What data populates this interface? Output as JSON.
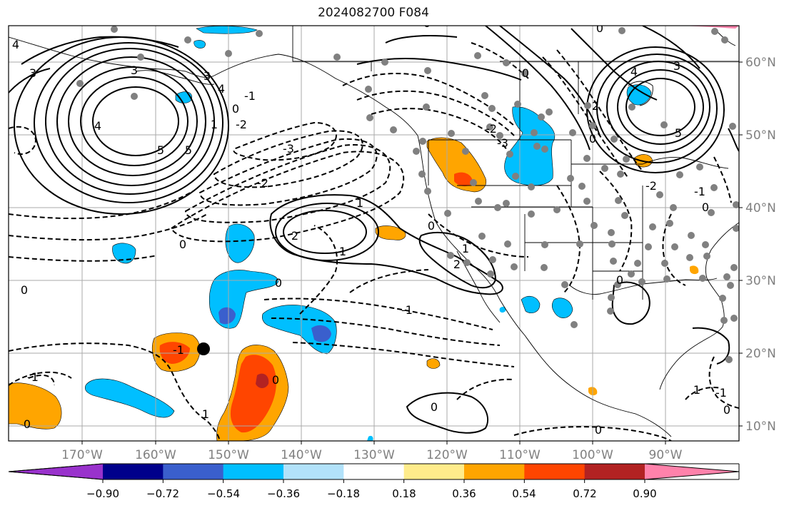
{
  "title": "2024082700 F084",
  "map": {
    "lon_labels": [
      "170°W",
      "160°W",
      "150°W",
      "140°W",
      "130°W",
      "120°W",
      "110°W",
      "100°W",
      "90°W"
    ],
    "lat_labels": [
      "60°N",
      "50°N",
      "40°N",
      "30°N",
      "20°N",
      "10°N"
    ],
    "contour_labels": [
      "4",
      "3",
      "3",
      "4",
      "5",
      "5",
      "3",
      "4",
      "0",
      "1",
      "-1",
      "-2",
      "-3",
      "-2",
      "1",
      "2",
      "1",
      "0",
      "2",
      "0",
      "-1",
      "0",
      "0",
      "0",
      "-1",
      "1",
      "0",
      "-1",
      "0",
      "0",
      "0",
      "1",
      "0",
      "-2",
      "-3",
      "2",
      "0",
      "3",
      "4",
      "5",
      "-2",
      "-1",
      "0",
      "0",
      "1",
      "-1",
      "0",
      "0"
    ]
  },
  "colorbar": {
    "tick_labels": [
      "−0.90",
      "−0.72",
      "−0.54",
      "−0.36",
      "−0.18",
      "0.18",
      "0.36",
      "0.54",
      "0.72",
      "0.90"
    ],
    "colors": [
      "#9932cc",
      "#00008b",
      "#3a5fcd",
      "#00bfff",
      "#b2e2fa",
      "#ffffff",
      "#ffec8b",
      "#ffa500",
      "#ff4500",
      "#b22222",
      "#ff82ab"
    ]
  },
  "colors": {
    "frame": "#000000",
    "grid": "#aaaaaa",
    "station": "#808080",
    "tick_text": "#808080"
  }
}
